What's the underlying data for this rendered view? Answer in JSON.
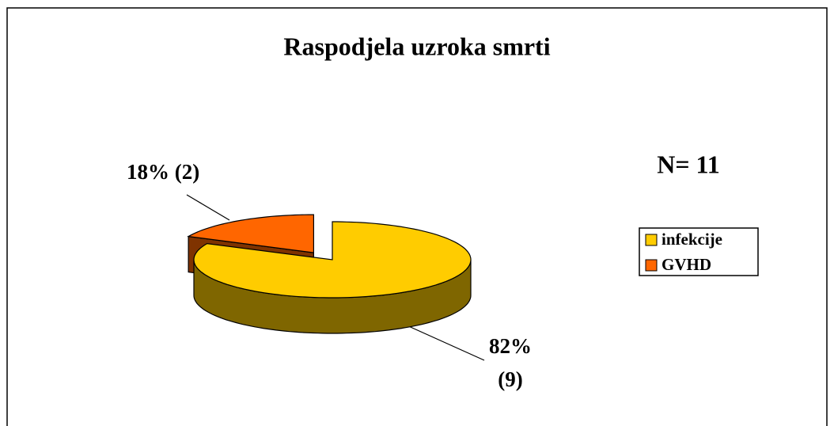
{
  "chart_data": {
    "type": "pie",
    "title": "Raspodjela uzroka smrti",
    "categories": [
      "infekcije",
      "GVHD"
    ],
    "values": [
      82,
      18
    ],
    "value_labels": [
      "82% (9)",
      "18% (2)"
    ],
    "colors": [
      "#ffcc00",
      "#ff6600"
    ],
    "annotation": "N= 11",
    "legend": "right"
  }
}
